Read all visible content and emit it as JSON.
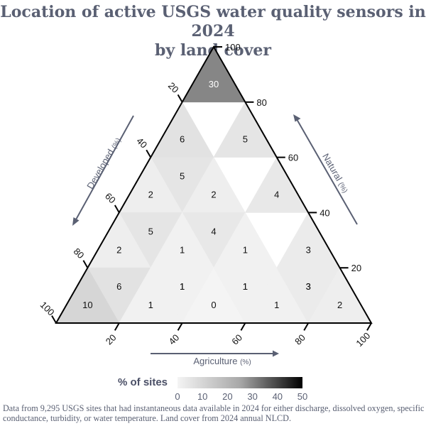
{
  "chart_data": {
    "type": "ternary-heatmap",
    "title": [
      "Location of active USGS water quality sensors in 2024",
      "by land cover"
    ],
    "axes": {
      "developed": {
        "label": "Developed",
        "unit": "(%)",
        "ticks": [
          "20",
          "40",
          "60",
          "80",
          "100"
        ]
      },
      "natural": {
        "label": "Natural",
        "unit": "(%)",
        "ticks": [
          "20",
          "40",
          "60",
          "80",
          "100"
        ]
      },
      "agriculture": {
        "label": "Agriculture",
        "unit": "(%)",
        "ticks": [
          "20",
          "40",
          "60",
          "80",
          "100"
        ]
      }
    },
    "cells": [
      {
        "agriculture": [
          0,
          20
        ],
        "developed": [
          0,
          20
        ],
        "natural": [
          80,
          100
        ],
        "value": 30
      },
      {
        "agriculture": [
          0,
          20
        ],
        "developed": [
          20,
          40
        ],
        "natural": [
          60,
          80
        ],
        "value": 6
      },
      {
        "agriculture": [
          0,
          20
        ],
        "developed": [
          20,
          40
        ],
        "natural": [
          40,
          60
        ],
        "value": 5
      },
      {
        "agriculture": [
          20,
          40
        ],
        "developed": [
          0,
          20
        ],
        "natural": [
          60,
          80
        ],
        "value": 5
      },
      {
        "agriculture": [
          0,
          20
        ],
        "developed": [
          40,
          60
        ],
        "natural": [
          40,
          60
        ],
        "value": 2
      },
      {
        "agriculture": [
          0,
          20
        ],
        "developed": [
          40,
          60
        ],
        "natural": [
          20,
          40
        ],
        "value": 5
      },
      {
        "agriculture": [
          20,
          40
        ],
        "developed": [
          20,
          40
        ],
        "natural": [
          40,
          60
        ],
        "value": 2
      },
      {
        "agriculture": [
          20,
          40
        ],
        "developed": [
          20,
          40
        ],
        "natural": [
          20,
          40
        ],
        "value": 4
      },
      {
        "agriculture": [
          40,
          60
        ],
        "developed": [
          0,
          20
        ],
        "natural": [
          40,
          60
        ],
        "value": 4
      },
      {
        "agriculture": [
          0,
          20
        ],
        "developed": [
          60,
          80
        ],
        "natural": [
          20,
          40
        ],
        "value": 2
      },
      {
        "agriculture": [
          0,
          20
        ],
        "developed": [
          60,
          80
        ],
        "natural": [
          0,
          20
        ],
        "value": 6
      },
      {
        "agriculture": [
          20,
          40
        ],
        "developed": [
          40,
          60
        ],
        "natural": [
          20,
          40
        ],
        "value": 1
      },
      {
        "agriculture": [
          20,
          40
        ],
        "developed": [
          40,
          60
        ],
        "natural": [
          0,
          20
        ],
        "value": 1
      },
      {
        "agriculture": [
          40,
          60
        ],
        "developed": [
          20,
          40
        ],
        "natural": [
          20,
          40
        ],
        "value": 1
      },
      {
        "agriculture": [
          40,
          60
        ],
        "developed": [
          20,
          40
        ],
        "natural": [
          0,
          20
        ],
        "value": 1
      },
      {
        "agriculture": [
          60,
          80
        ],
        "developed": [
          0,
          20
        ],
        "natural": [
          20,
          40
        ],
        "value": 3
      },
      {
        "agriculture": [
          60,
          80
        ],
        "developed": [
          0,
          20
        ],
        "natural": [
          0,
          20
        ],
        "value": 3
      },
      {
        "agriculture": [
          0,
          20
        ],
        "developed": [
          80,
          100
        ],
        "natural": [
          0,
          20
        ],
        "value": 10
      },
      {
        "agriculture": [
          20,
          40
        ],
        "developed": [
          60,
          80
        ],
        "natural": [
          0,
          20
        ],
        "value": 1
      },
      {
        "agriculture": [
          20,
          40
        ],
        "developed": [
          40,
          60
        ],
        "natural": [
          0,
          20
        ],
        "value": 1
      },
      {
        "agriculture": [
          40,
          60
        ],
        "developed": [
          40,
          60
        ],
        "natural": [
          0,
          20
        ],
        "value": 0
      },
      {
        "agriculture": [
          40,
          60
        ],
        "developed": [
          20,
          40
        ],
        "natural": [
          0,
          20
        ],
        "value": 1
      },
      {
        "agriculture": [
          60,
          80
        ],
        "developed": [
          20,
          40
        ],
        "natural": [
          0,
          20
        ],
        "value": 1
      },
      {
        "agriculture": [
          60,
          80
        ],
        "developed": [
          0,
          20
        ],
        "natural": [
          0,
          20
        ],
        "value": 3
      },
      {
        "agriculture": [
          80,
          100
        ],
        "developed": [
          0,
          20
        ],
        "natural": [
          0,
          20
        ],
        "value": 2
      }
    ],
    "legend": {
      "title": "% of sites",
      "range": [
        0,
        50
      ],
      "ticks": [
        "0",
        "10",
        "20",
        "30",
        "40",
        "50"
      ],
      "colors": [
        "#f4f4f4",
        "#000000"
      ]
    },
    "caption": "Data from 9,295 USGS sites that had instantaneous data available in 2024 for either discharge, dissolved oxygen, specific conductance, turbidity, or water temperature. Land cover from 2024 annual NLCD."
  },
  "colors": {
    "title": "#5a6073",
    "axis_arrow": "#5a6073",
    "frame": "#000000"
  }
}
